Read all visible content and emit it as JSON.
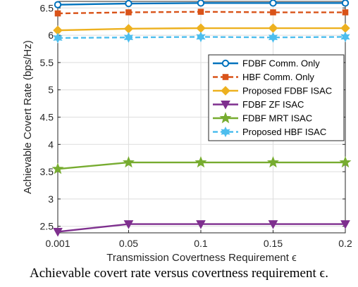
{
  "chart_data": {
    "type": "line",
    "xlabel": "Transmission Covertness Requirement ϵ",
    "ylabel": "Achievable Covert Rate (bps/Hz)",
    "x": [
      0.001,
      0.05,
      0.1,
      0.15,
      0.2
    ],
    "x_tick_labels": [
      "0.001",
      "0.05",
      "0.1",
      "0.15",
      "0.2"
    ],
    "xlim": [
      0.001,
      0.2
    ],
    "ylim": [
      2.38,
      6.62
    ],
    "y_ticks": [
      2.5,
      3,
      3.5,
      4,
      4.5,
      5,
      5.5,
      6,
      6.5
    ],
    "grid": true,
    "legend_position": "top-right, inside",
    "series": [
      {
        "name": "FDBF Comm. Only",
        "color": "#0072BD",
        "dash": "solid",
        "marker": "circle",
        "values": [
          6.56,
          6.58,
          6.59,
          6.59,
          6.59
        ]
      },
      {
        "name": "HBF Comm. Only",
        "color": "#D95319",
        "dash": "dashed",
        "marker": "square",
        "values": [
          6.4,
          6.42,
          6.43,
          6.42,
          6.42
        ]
      },
      {
        "name": "Proposed FDBF ISAC",
        "color": "#EDB120",
        "dash": "solid",
        "marker": "diamond",
        "values": [
          6.09,
          6.12,
          6.13,
          6.13,
          6.13
        ]
      },
      {
        "name": "FDBF ZF ISAC",
        "color": "#7E2F8E",
        "dash": "solid",
        "marker": "triangle-down",
        "values": [
          2.4,
          2.54,
          2.54,
          2.54,
          2.54
        ]
      },
      {
        "name": "FDBF MRT ISAC",
        "color": "#77AC30",
        "dash": "solid",
        "marker": "star",
        "values": [
          3.55,
          3.67,
          3.67,
          3.67,
          3.67
        ]
      },
      {
        "name": "Proposed HBF ISAC",
        "color": "#4DBEEE",
        "dash": "dashed",
        "marker": "hexagram",
        "values": [
          5.95,
          5.96,
          5.97,
          5.96,
          5.97
        ]
      }
    ]
  },
  "caption": "Achievable covert rate versus covertness requirement ϵ."
}
